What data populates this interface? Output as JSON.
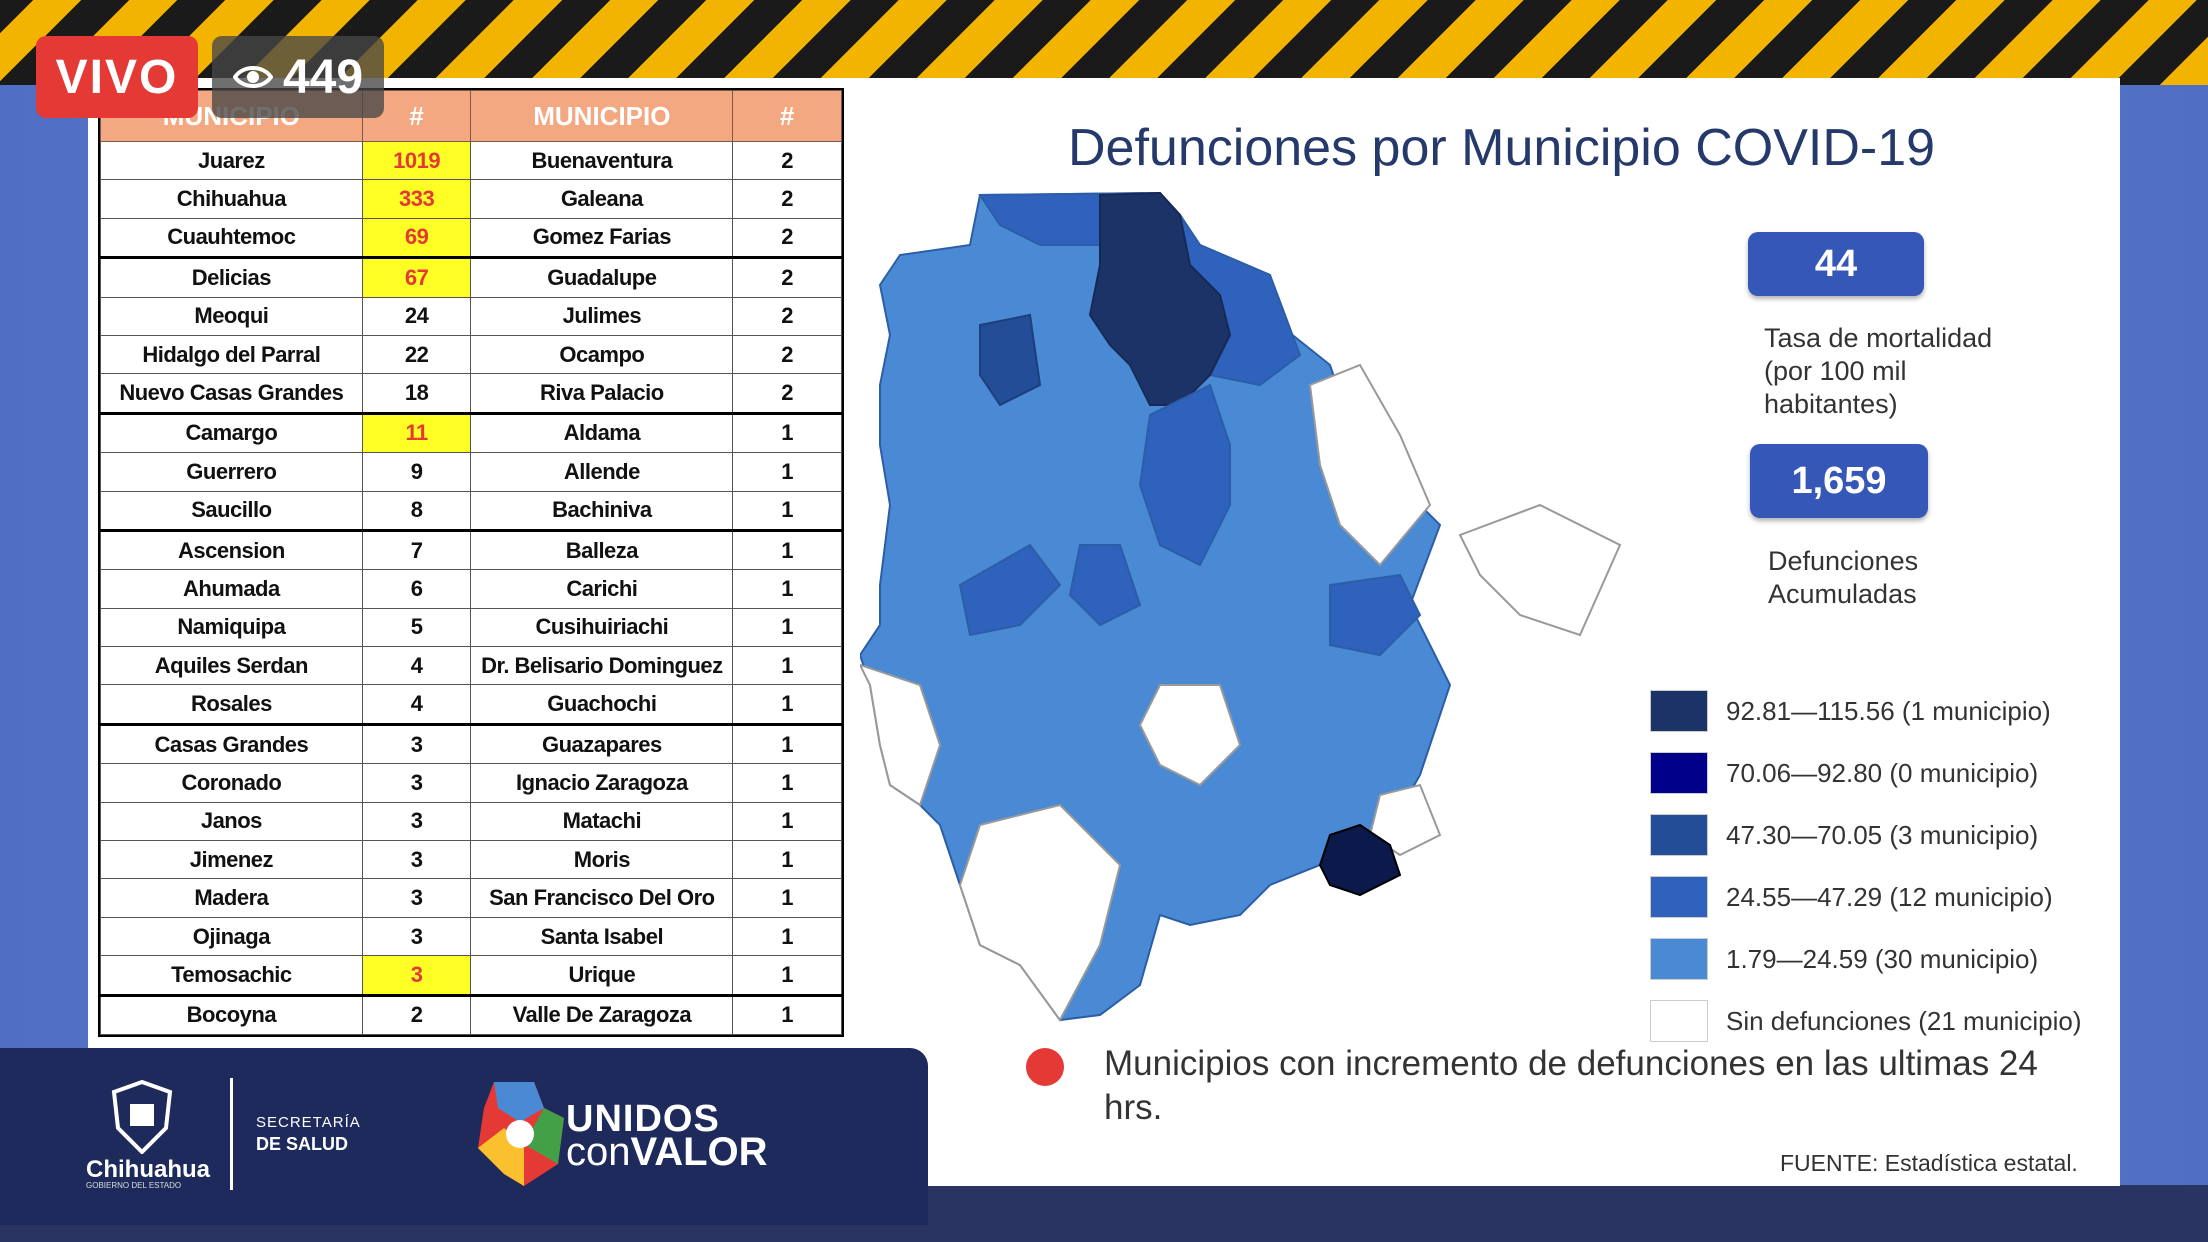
{
  "overlay": {
    "live_label": "VIVO",
    "viewer_count": "449"
  },
  "table": {
    "headers": [
      "MUNICIPIO",
      "#",
      "MUNICIPIO",
      "#"
    ],
    "rows": [
      [
        "Juarez",
        "1019",
        "Buenaventura",
        "2"
      ],
      [
        "Chihuahua",
        "333",
        "Galeana",
        "2"
      ],
      [
        "Cuauhtemoc",
        "69",
        "Gomez Farias",
        "2"
      ],
      [
        "Delicias",
        "67",
        "Guadalupe",
        "2"
      ],
      [
        "Meoqui",
        "24",
        "Julimes",
        "2"
      ],
      [
        "Hidalgo del Parral",
        "22",
        "Ocampo",
        "2"
      ],
      [
        "Nuevo Casas Grandes",
        "18",
        "Riva Palacio",
        "2"
      ],
      [
        "Camargo",
        "11",
        "Aldama",
        "1"
      ],
      [
        "Guerrero",
        "9",
        "Allende",
        "1"
      ],
      [
        "Saucillo",
        "8",
        "Bachiniva",
        "1"
      ],
      [
        "Ascension",
        "7",
        "Balleza",
        "1"
      ],
      [
        "Ahumada",
        "6",
        "Carichi",
        "1"
      ],
      [
        "Namiquipa",
        "5",
        "Cusihuiriachi",
        "1"
      ],
      [
        "Aquiles Serdan",
        "4",
        "Dr. Belisario Dominguez",
        "1"
      ],
      [
        "Rosales",
        "4",
        "Guachochi",
        "1"
      ],
      [
        "Casas Grandes",
        "3",
        "Guazapares",
        "1"
      ],
      [
        "Coronado",
        "3",
        "Ignacio Zaragoza",
        "1"
      ],
      [
        "Janos",
        "3",
        "Matachi",
        "1"
      ],
      [
        "Jimenez",
        "3",
        "Moris",
        "1"
      ],
      [
        "Madera",
        "3",
        "San Francisco Del Oro",
        "1"
      ],
      [
        "Ojinaga",
        "3",
        "Santa Isabel",
        "1"
      ],
      [
        "Temosachic",
        "3",
        "Urique",
        "1"
      ],
      [
        "Bocoyna",
        "2",
        "Valle De Zaragoza",
        "1"
      ]
    ],
    "highlighted_rows": [
      0,
      1,
      2,
      3,
      7,
      21
    ],
    "highlight_color": "#ffff26"
  },
  "title": "Defunciones por Municipio COVID-19",
  "stats": {
    "rate_value": "44",
    "rate_label_lines": [
      "Tasa de mortalidad",
      "(por 100 mil",
      "habitantes)"
    ],
    "deaths_value": "1,659",
    "deaths_label_lines": [
      "Defunciones",
      "Acumuladas"
    ]
  },
  "legend": [
    {
      "label": "92.81—115.56 (1 municipio)",
      "color": "#1b3366"
    },
    {
      "label": "70.06—92.80 (0 municipio)",
      "color": "#00008b"
    },
    {
      "label": "47.30—70.05 (3 municipio)",
      "color": "#234d96"
    },
    {
      "label": "24.55—47.29 (12 municipio)",
      "color": "#2f62bc"
    },
    {
      "label": "1.79—24.59 (30 municipio)",
      "color": "#4a8ad4"
    },
    {
      "label": "Sin defunciones (21 municipio)",
      "color": "#ffffff"
    }
  ],
  "note": "Municipios con incremento de defunciones en las ultimas 24 hrs.",
  "source": "FUENTE: Estadística estatal.",
  "footer": {
    "gov_name": "Chihuahua",
    "gov_subtitle": "GOBIERNO DEL ESTADO",
    "dept_line1": "SECRETARÍA",
    "dept_line2": "DE SALUD",
    "campaign_line1": "UNIDOS",
    "campaign_con": "con",
    "campaign_valor": "VALOR"
  }
}
